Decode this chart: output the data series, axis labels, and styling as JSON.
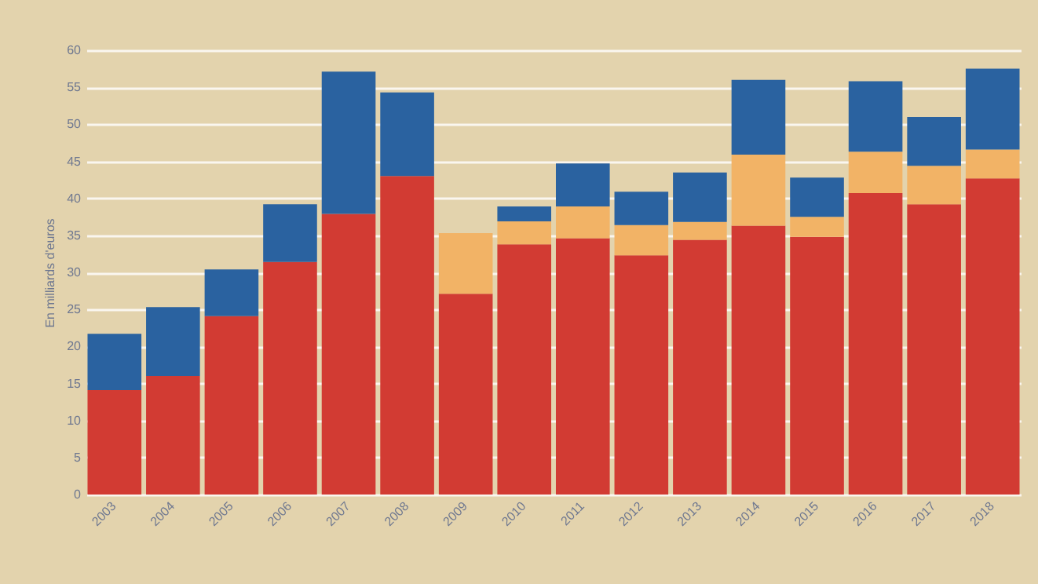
{
  "chart_data": {
    "type": "bar",
    "stacked": true,
    "ylabel": "En milliards d'euros",
    "categories": [
      "2003",
      "2004",
      "2005",
      "2006",
      "2007",
      "2008",
      "2009",
      "2010",
      "2011",
      "2012",
      "2013",
      "2014",
      "2015",
      "2016",
      "2017",
      "2018"
    ],
    "series": [
      {
        "color": "#d23b33",
        "values": [
          14.1,
          16.0,
          24.1,
          31.4,
          37.9,
          43.0,
          27.1,
          33.8,
          34.6,
          32.3,
          34.4,
          36.3,
          34.8,
          40.7,
          39.2,
          42.7
        ]
      },
      {
        "color": "#f2b366",
        "values": [
          null,
          null,
          null,
          null,
          null,
          null,
          8.2,
          3.1,
          4.3,
          4.1,
          2.4,
          9.6,
          2.7,
          5.6,
          5.2,
          3.9
        ]
      },
      {
        "color": "#2a62a0",
        "values": [
          7.6,
          9.3,
          6.3,
          7.8,
          19.2,
          11.3,
          null,
          2.0,
          5.8,
          4.5,
          6.7,
          10.1,
          5.3,
          9.5,
          6.6,
          10.9
        ]
      }
    ],
    "ylim": [
      0,
      60
    ],
    "yticks": [
      0,
      5,
      10,
      15,
      20,
      25,
      30,
      35,
      40,
      45,
      50,
      55,
      60
    ],
    "grid": "y",
    "legend": false
  }
}
